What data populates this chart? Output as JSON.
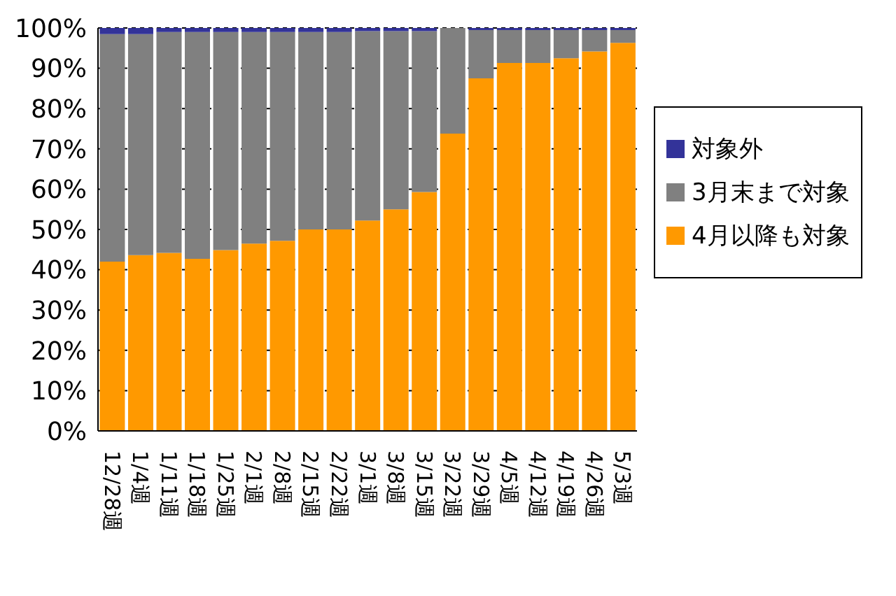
{
  "chart_data": {
    "type": "bar",
    "stacked": true,
    "categories": [
      "12/28週",
      "1/4週",
      "1/11週",
      "1/18週",
      "1/25週",
      "2/1週",
      "2/8週",
      "2/15週",
      "2/22週",
      "3/1週",
      "3/8週",
      "3/15週",
      "3/22週",
      "3/29週",
      "4/5週",
      "4/12週",
      "4/19週",
      "4/26週",
      "5/3週"
    ],
    "series": [
      {
        "name": "4月以降も対象",
        "color": "#ff9900",
        "values": [
          42,
          43.6,
          44.2,
          42.7,
          44.9,
          46.5,
          47.2,
          50,
          50,
          52.2,
          55,
          59.3,
          73.8,
          87.5,
          91.3,
          91.3,
          92.5,
          94.2,
          96.3
        ]
      },
      {
        "name": "3月末まで対象",
        "color": "#808080",
        "values": [
          56.5,
          54.9,
          54.8,
          56.3,
          54.1,
          52.5,
          51.8,
          49,
          49,
          47,
          44.2,
          39.9,
          26.2,
          12,
          8.2,
          8.2,
          7,
          5.3,
          3.2
        ]
      },
      {
        "name": "対象外",
        "color": "#333399",
        "values": [
          1.5,
          1.5,
          1,
          1,
          1,
          1,
          1,
          1,
          1,
          0.8,
          0.8,
          0.8,
          0,
          0.5,
          0.5,
          0.5,
          0.5,
          0.5,
          0.5
        ]
      }
    ],
    "ylim": [
      0,
      100
    ],
    "yticks": [
      {
        "value": 0,
        "label": "0%"
      },
      {
        "value": 10,
        "label": "10%"
      },
      {
        "value": 20,
        "label": "20%"
      },
      {
        "value": 30,
        "label": "30%"
      },
      {
        "value": 40,
        "label": "40%"
      },
      {
        "value": 50,
        "label": "50%"
      },
      {
        "value": 60,
        "label": "60%"
      },
      {
        "value": 70,
        "label": "70%"
      },
      {
        "value": 80,
        "label": "80%"
      },
      {
        "value": 90,
        "label": "90%"
      },
      {
        "value": 100,
        "label": "100%"
      }
    ],
    "grid": "y",
    "legend": "right"
  }
}
